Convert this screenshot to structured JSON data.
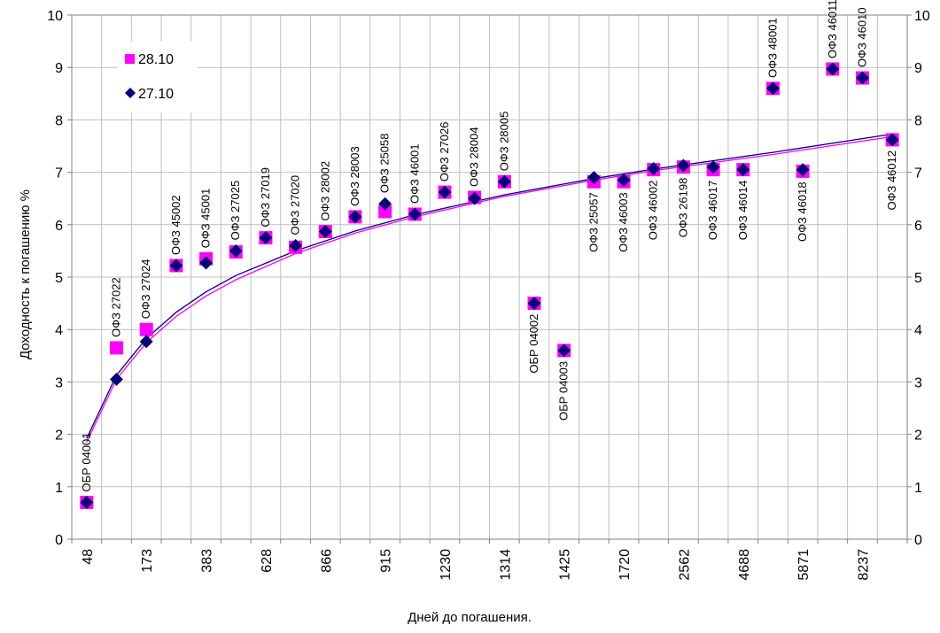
{
  "chart_data": {
    "type": "scatter",
    "xlabel": "Дней до погашения.",
    "ylabel": "Доходность к погашению %",
    "ylim": [
      0,
      10
    ],
    "y_ticks": [
      "0",
      "1",
      "2",
      "3",
      "4",
      "5",
      "6",
      "7",
      "8",
      "9",
      "10"
    ],
    "categories": [
      "48",
      "",
      "173",
      "",
      "383",
      "",
      "628",
      "",
      "866",
      "",
      "915",
      "",
      "1230",
      "",
      "1314",
      "",
      "1425",
      "",
      "1720",
      "",
      "2562",
      "",
      "4688",
      "",
      "5871",
      "",
      "8237",
      ""
    ],
    "point_labels": [
      "ОБР 04001",
      "ОФЗ 27022",
      "ОФЗ 27024",
      "ОФЗ 45002",
      "ОФЗ 45001",
      "ОФЗ 27025",
      "ОФЗ 27019",
      "ОФЗ 27020",
      "ОФЗ 28002",
      "ОФЗ 28003",
      "ОФЗ 25058",
      "ОФЗ 46001",
      "ОФЗ 27026",
      "ОФЗ 28004",
      "ОФЗ 28005",
      "ОБР 04002",
      "ОБР 04003",
      "ОФЗ 25057",
      "ОФЗ 46003",
      "ОФЗ 46002",
      "ОФЗ 26198",
      "ОФЗ 46017",
      "ОФЗ 46014",
      "ОФЗ 48001",
      "ОФЗ 46018",
      "ОФЗ 46011",
      "ОФЗ 46010",
      "ОФЗ 46012"
    ],
    "series": [
      {
        "name": "28.10",
        "color": "#ff00ff",
        "marker": "square",
        "values": [
          0.7,
          3.65,
          4.0,
          5.22,
          5.35,
          5.48,
          5.75,
          5.57,
          5.87,
          6.15,
          6.25,
          6.2,
          6.62,
          6.52,
          6.82,
          4.5,
          3.6,
          6.82,
          6.82,
          7.05,
          7.1,
          7.05,
          7.05,
          8.6,
          7.02,
          8.97,
          8.8,
          7.62
        ]
      },
      {
        "name": "27.10",
        "color": "#000080",
        "marker": "diamond",
        "values": [
          0.7,
          3.05,
          3.77,
          5.22,
          5.27,
          5.5,
          5.75,
          5.6,
          5.87,
          6.15,
          6.4,
          6.2,
          6.62,
          6.5,
          6.82,
          4.5,
          3.6,
          6.9,
          6.85,
          7.07,
          7.13,
          7.1,
          7.05,
          8.6,
          7.05,
          8.97,
          8.8,
          7.62
        ]
      }
    ],
    "trendlines": [
      {
        "series": "28.10",
        "color": "#ff00ff",
        "type": "logarithmic",
        "points": [
          [
            1,
            1.85
          ],
          [
            2,
            3.05
          ],
          [
            3,
            3.75
          ],
          [
            4,
            4.25
          ],
          [
            5,
            4.64
          ],
          [
            6,
            4.95
          ],
          [
            8,
            5.45
          ],
          [
            10,
            5.84
          ],
          [
            12,
            6.15
          ],
          [
            15,
            6.54
          ],
          [
            18,
            6.85
          ],
          [
            20,
            7.03
          ],
          [
            24,
            7.34
          ],
          [
            28,
            7.68
          ]
        ]
      },
      {
        "series": "27.10",
        "color": "#000080",
        "type": "logarithmic",
        "points": [
          [
            1,
            1.92
          ],
          [
            2,
            3.13
          ],
          [
            3,
            3.83
          ],
          [
            4,
            4.33
          ],
          [
            5,
            4.72
          ],
          [
            6,
            5.03
          ],
          [
            8,
            5.5
          ],
          [
            10,
            5.88
          ],
          [
            12,
            6.19
          ],
          [
            15,
            6.57
          ],
          [
            18,
            6.88
          ],
          [
            20,
            7.06
          ],
          [
            24,
            7.38
          ],
          [
            28,
            7.73
          ]
        ]
      }
    ],
    "grid": true,
    "legend_position": "top-left"
  }
}
